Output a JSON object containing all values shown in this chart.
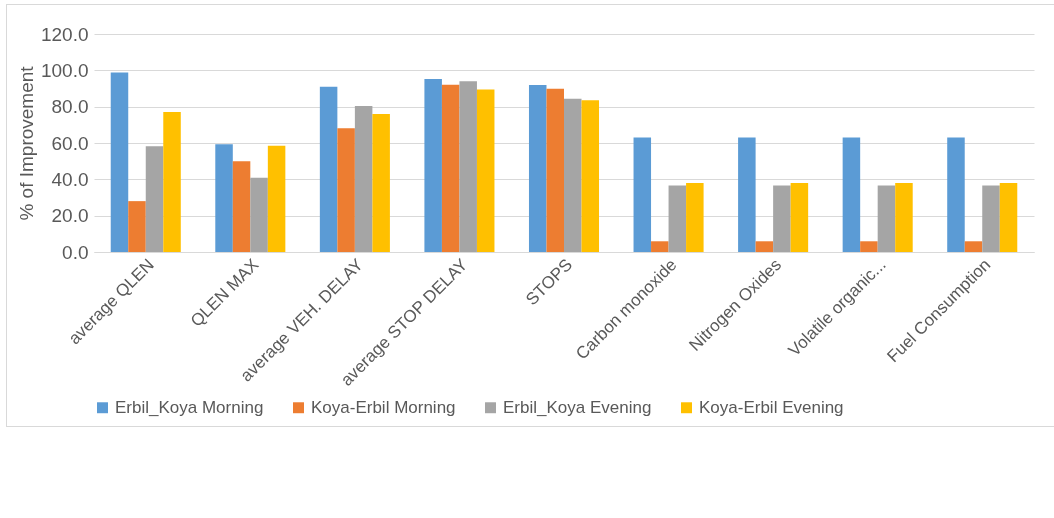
{
  "chart_data": {
    "type": "bar",
    "ylabel": "% of Improvement",
    "categories": [
      "average QLEN",
      "QLEN MAX",
      "average VEH. DELAY",
      "average STOP DELAY",
      "STOPS",
      "Carbon monoxide",
      "Nitrogen Oxides",
      "Volatile organic...",
      "Fuel Consumption"
    ],
    "series": [
      {
        "name": "Erbil_Koya Morning",
        "color": "#5b9bd5",
        "values": [
          98.8,
          59.3,
          91.0,
          95.2,
          91.9,
          63.0,
          63.0,
          63.0,
          63.0
        ]
      },
      {
        "name": "Koya-Erbil Morning",
        "color": "#ed7d31",
        "values": [
          28.0,
          49.9,
          68.1,
          92.1,
          89.8,
          5.9,
          5.9,
          5.9,
          5.9
        ]
      },
      {
        "name": "Erbil_Koya Evening",
        "color": "#a5a5a5",
        "values": [
          58.2,
          40.9,
          80.4,
          94.0,
          84.3,
          36.6,
          36.6,
          36.6,
          36.6
        ]
      },
      {
        "name": "Koya-Erbil Evening",
        "color": "#ffc000",
        "values": [
          77.0,
          58.5,
          76.0,
          89.4,
          83.5,
          38.0,
          38.0,
          38.0,
          38.0
        ]
      }
    ],
    "ylim": [
      0,
      120
    ],
    "yticks": [
      {
        "value": 0,
        "label": "0.0"
      },
      {
        "value": 20,
        "label": "20.0"
      },
      {
        "value": 40,
        "label": "40.0"
      },
      {
        "value": 60,
        "label": "60.0"
      },
      {
        "value": 80,
        "label": "80.0"
      },
      {
        "value": 100,
        "label": "100.0"
      },
      {
        "value": 120,
        "label": "120.0"
      }
    ],
    "grid": "y",
    "legend": "bottom"
  }
}
